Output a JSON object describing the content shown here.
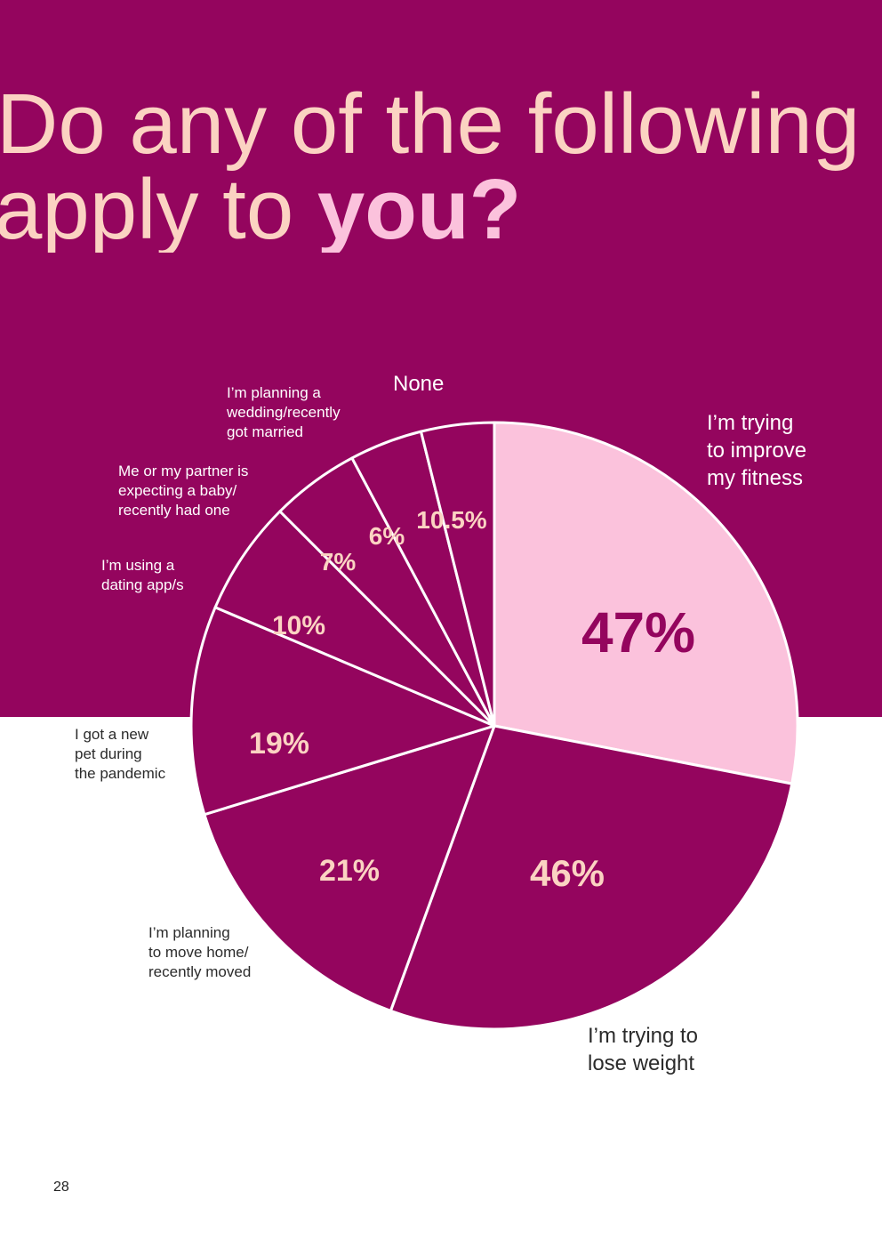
{
  "title": {
    "line1": "Do any of the following",
    "line2_prefix": "apply to ",
    "line2_emphasis": "you?"
  },
  "page_number": "28",
  "colors": {
    "band": "#94055e",
    "slice_dark": "#94055e",
    "slice_light": "#fbc2dc",
    "label_on_dark": "#fbd3c2",
    "label_on_light": "#94055e",
    "title": "#fbd3c2"
  },
  "chart_data": {
    "type": "pie",
    "unit": "%",
    "slices": [
      {
        "label": "I’m trying\nto improve\nmy fitness",
        "value": 47,
        "value_label": "47%",
        "highlight": true
      },
      {
        "label": "I’m trying to\nlose weight",
        "value": 46,
        "value_label": "46%"
      },
      {
        "label": "I’m planning\nto move home/\nrecently moved",
        "value": 21,
        "value_label": "21%"
      },
      {
        "label": "I got a new\npet during\nthe pandemic",
        "value": 19,
        "value_label": "19%"
      },
      {
        "label": "I’m using a\ndating app/s",
        "value": 10,
        "value_label": "10%"
      },
      {
        "label": "Me or my partner is\nexpecting a baby/\nrecently had one",
        "value": 7,
        "value_label": "7%"
      },
      {
        "label": "I’m planning a\nwedding/recently\ngot married",
        "value": 6,
        "value_label": "6%"
      },
      {
        "label": "None",
        "value": 10.5,
        "value_label": "10.5%"
      }
    ]
  }
}
